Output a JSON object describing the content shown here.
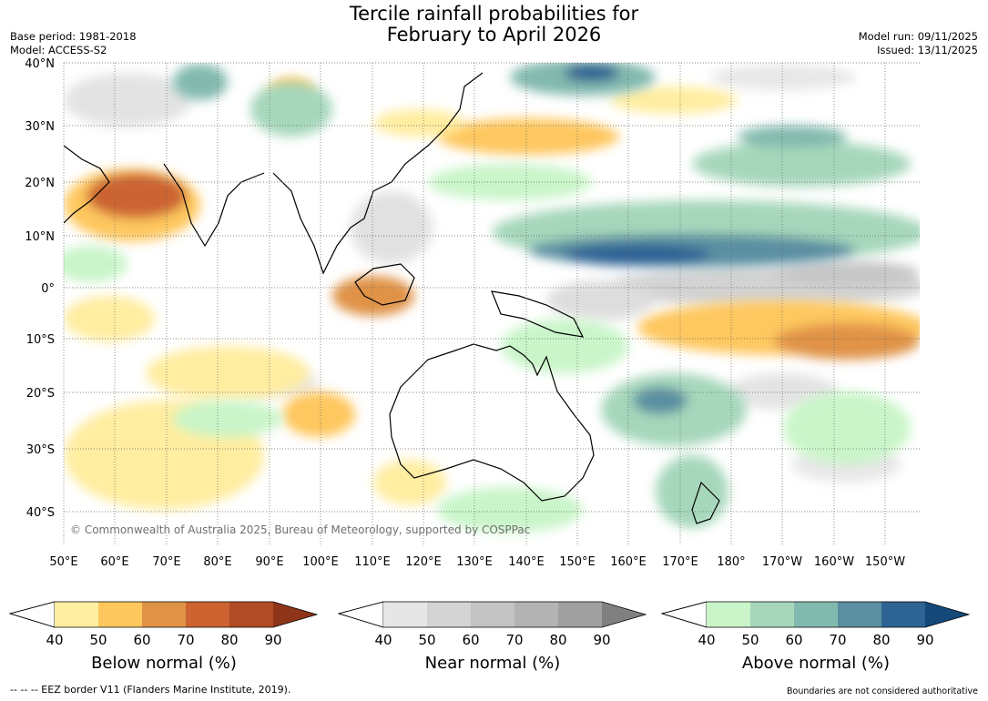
{
  "title": {
    "line1": "Tercile rainfall probabilities for",
    "line2": "February to April 2026"
  },
  "meta": {
    "base_period": "Base period: 1981-2018",
    "model": "Model: ACCESS-S2",
    "model_run": "Model run: 09/11/2025",
    "issued": "Issued: 13/11/2025"
  },
  "map": {
    "lat_labels": [
      "40°N",
      "30°N",
      "20°N",
      "10°N",
      "0°",
      "10°S",
      "20°S",
      "30°S",
      "40°S"
    ],
    "lon_labels": [
      "50°E",
      "60°E",
      "70°E",
      "80°E",
      "90°E",
      "100°E",
      "110°E",
      "120°E",
      "130°E",
      "140°E",
      "150°E",
      "160°E",
      "170°E",
      "180°",
      "170°W",
      "160°W",
      "150°W"
    ],
    "copyright": "© Commonwealth of Australia 2025, Bureau of Meteorology, supported by COSPPac"
  },
  "legends": [
    {
      "name": "below",
      "caption": "Below normal (%)",
      "ticks": [
        "40",
        "50",
        "60",
        "70",
        "80",
        "90"
      ],
      "colors": [
        "#ffeda0",
        "#fec75e",
        "#e09347",
        "#cc6330",
        "#b04c25",
        "#8e3519"
      ]
    },
    {
      "name": "near",
      "caption": "Near normal (%)",
      "ticks": [
        "40",
        "50",
        "60",
        "70",
        "80",
        "90"
      ],
      "colors": [
        "#e6e6e6",
        "#d4d4d4",
        "#c3c3c3",
        "#b3b3b3",
        "#a0a0a0",
        "#808080"
      ]
    },
    {
      "name": "above",
      "caption": "Above normal (%)",
      "ticks": [
        "40",
        "50",
        "60",
        "70",
        "80",
        "90"
      ],
      "colors": [
        "#c9f5c9",
        "#a6d7bb",
        "#82b9ae",
        "#5a8fa1",
        "#2e6494",
        "#14497a"
      ]
    }
  ],
  "footer": {
    "left": "--  --  -- EEZ border V11 (Flanders Marine Institute, 2019).",
    "right": "Boundaries are not considered authoritative"
  }
}
